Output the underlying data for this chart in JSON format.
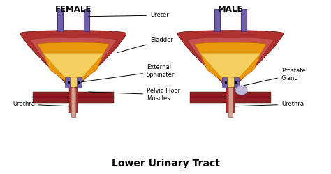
{
  "title": "Lower Urinary Tract",
  "title_fontsize": 10,
  "title_fontweight": "bold",
  "female_label": "FEMALE",
  "male_label": "MALE",
  "labels": {
    "ureter": "Ureter",
    "bladder": "Bladder",
    "external_sphincter": "External\nSphincter",
    "pelvic_floor": "Pelvic Floor\nMuscles",
    "urethra_female": "Urethra",
    "urethra_male": "Urethra",
    "prostate": "Prostate\nGland"
  },
  "background_color": "#ffffff",
  "outer_dark_red": "#b03030",
  "outer_mid_red": "#c85050",
  "inner_pink": "#e8a090",
  "orange_fill": "#e8980a",
  "yellow_fill": "#f5d060",
  "muscle_color": "#8b2020",
  "ureter_color": "#7060a8",
  "sphincter_color": "#7060a8",
  "urethra_tube": "#d4a090",
  "prostate_color": "#c0b8d8",
  "text_color": "#000000",
  "label_fontsize": 6.0,
  "header_fontsize": 8.5
}
